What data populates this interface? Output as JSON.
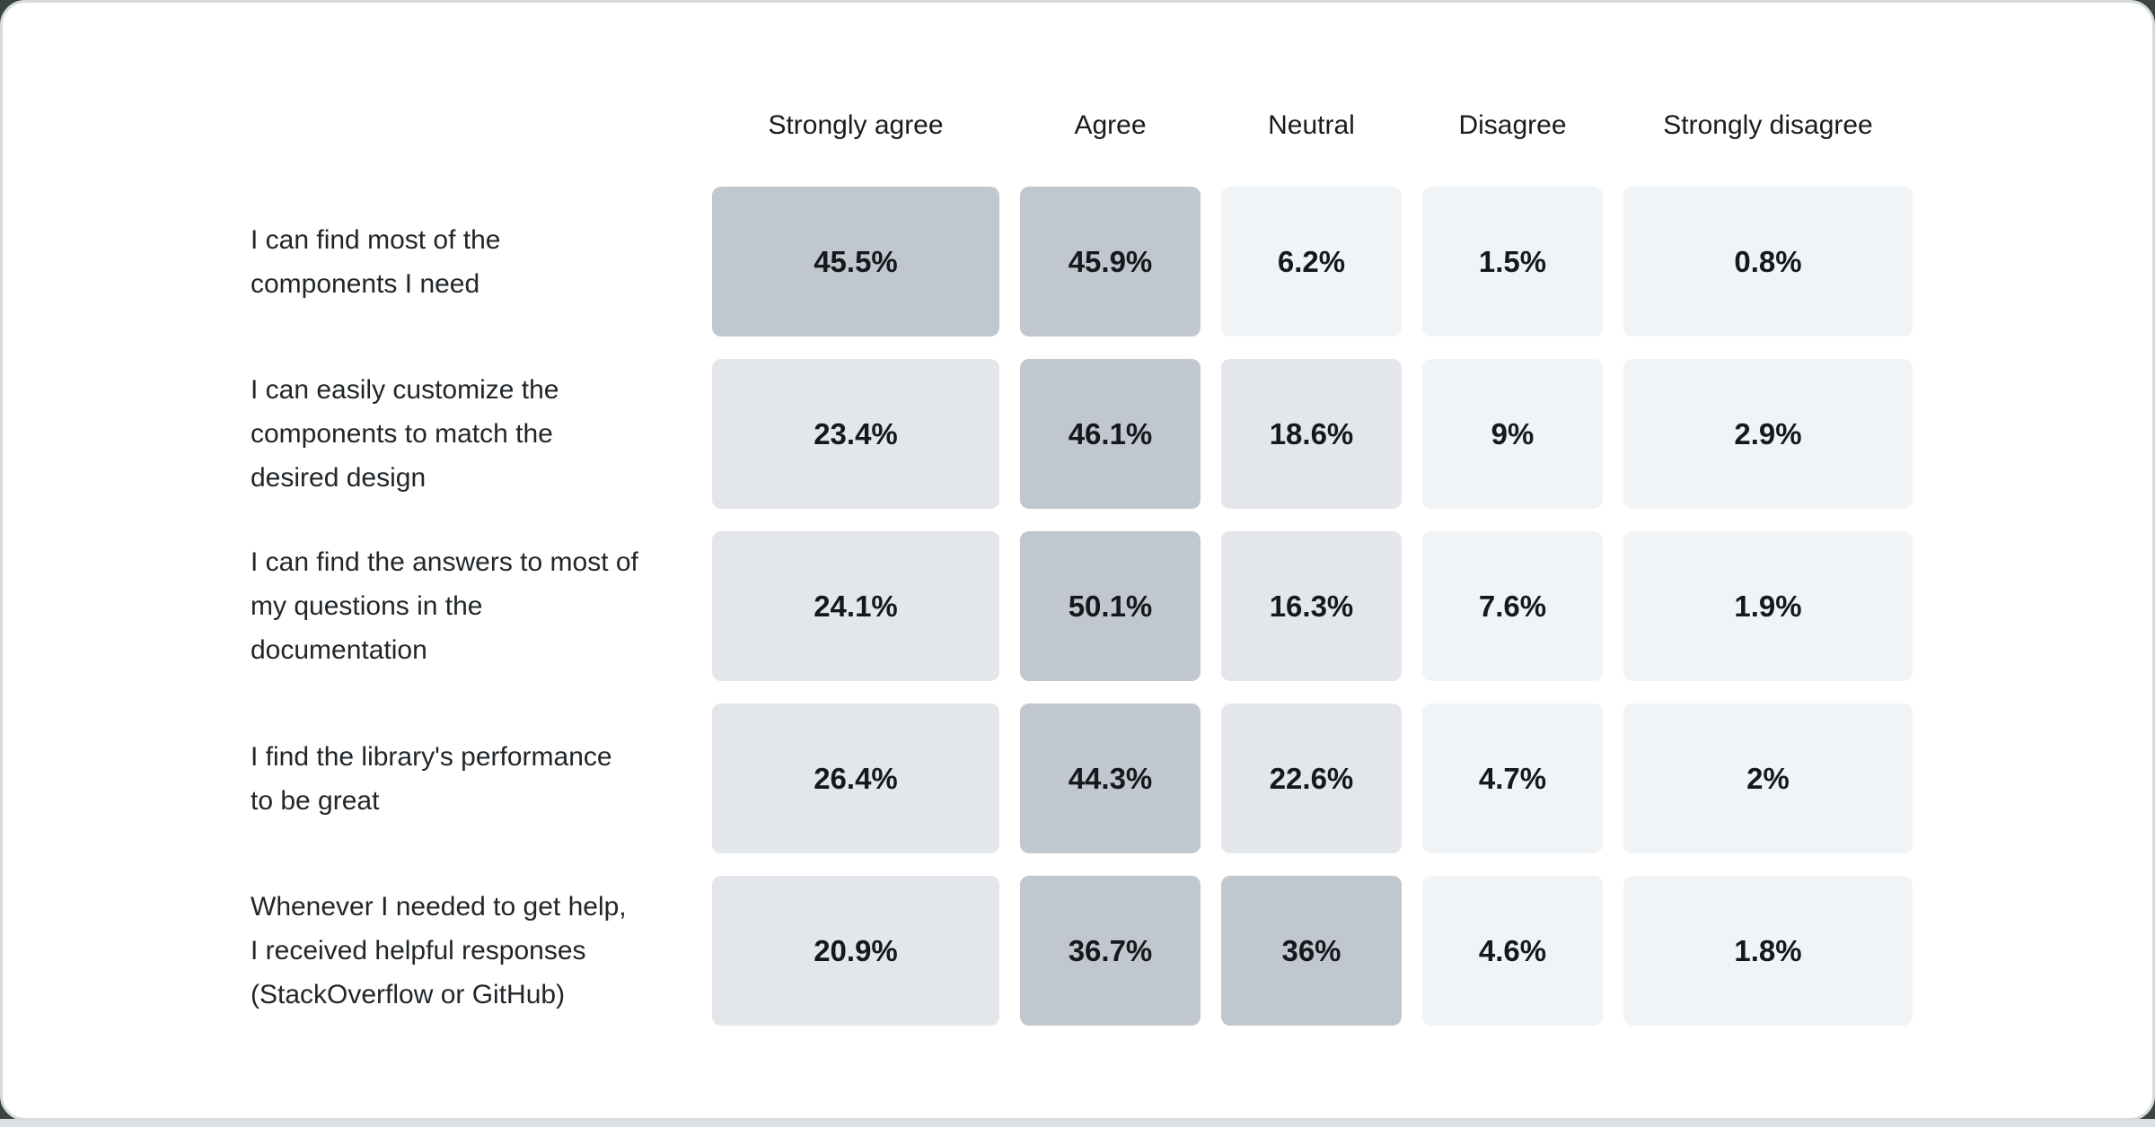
{
  "page": {
    "background_color": "#39453d",
    "card_color": "#ffffff",
    "card_border_color": "#d7dbde",
    "bottom_strip_color": "#dde1e4"
  },
  "chart_data": {
    "type": "heatmap",
    "columns": [
      "Strongly agree",
      "Agree",
      "Neutral",
      "Disagree",
      "Strongly disagree"
    ],
    "rows": [
      {
        "label": "I can find most of the components I need",
        "cells": [
          {
            "text": "45.5%",
            "value": 45.5,
            "level": "high"
          },
          {
            "text": "45.9%",
            "value": 45.9,
            "level": "high"
          },
          {
            "text": "6.2%",
            "value": 6.2,
            "level": "low"
          },
          {
            "text": "1.5%",
            "value": 1.5,
            "level": "low"
          },
          {
            "text": "0.8%",
            "value": 0.8,
            "level": "low"
          }
        ]
      },
      {
        "label": "I can easily customize the components to match the desired design",
        "cells": [
          {
            "text": "23.4%",
            "value": 23.4,
            "level": "medium"
          },
          {
            "text": "46.1%",
            "value": 46.1,
            "level": "high"
          },
          {
            "text": "18.6%",
            "value": 18.6,
            "level": "medium"
          },
          {
            "text": "9%",
            "value": 9,
            "level": "low"
          },
          {
            "text": "2.9%",
            "value": 2.9,
            "level": "low"
          }
        ]
      },
      {
        "label": "I can find the answers to most of my questions in the documentation",
        "cells": [
          {
            "text": "24.1%",
            "value": 24.1,
            "level": "medium"
          },
          {
            "text": "50.1%",
            "value": 50.1,
            "level": "high"
          },
          {
            "text": "16.3%",
            "value": 16.3,
            "level": "medium"
          },
          {
            "text": "7.6%",
            "value": 7.6,
            "level": "low"
          },
          {
            "text": "1.9%",
            "value": 1.9,
            "level": "low"
          }
        ]
      },
      {
        "label": "I find the library's performance to be great",
        "cells": [
          {
            "text": "26.4%",
            "value": 26.4,
            "level": "medium"
          },
          {
            "text": "44.3%",
            "value": 44.3,
            "level": "high"
          },
          {
            "text": "22.6%",
            "value": 22.6,
            "level": "medium"
          },
          {
            "text": "4.7%",
            "value": 4.7,
            "level": "low"
          },
          {
            "text": "2%",
            "value": 2,
            "level": "low"
          }
        ]
      },
      {
        "label": "Whenever I needed to get help, I received helpful responses (StackOverflow or GitHub)",
        "cells": [
          {
            "text": "20.9%",
            "value": 20.9,
            "level": "medium"
          },
          {
            "text": "36.7%",
            "value": 36.7,
            "level": "high"
          },
          {
            "text": "36%",
            "value": 36,
            "level": "high"
          },
          {
            "text": "4.6%",
            "value": 4.6,
            "level": "low"
          },
          {
            "text": "1.8%",
            "value": 1.8,
            "level": "low"
          }
        ]
      }
    ],
    "color_scale": {
      "high": "#c1c7ce",
      "medium": "#e3e6eb",
      "low": "#f1f4f7"
    },
    "value_text_color": "#15181c",
    "label_text_color": "#21262a",
    "header_text_color": "#181c1f",
    "layout": {
      "legend": "none",
      "grid": "off",
      "cell_shape": "rounded-rectangle"
    }
  }
}
